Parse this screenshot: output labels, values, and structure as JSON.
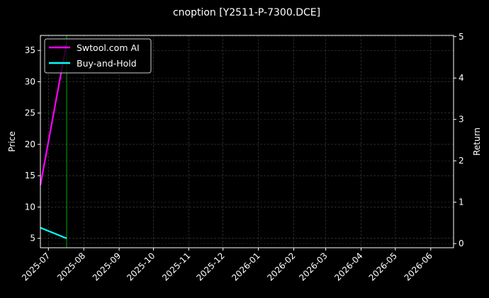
{
  "chart_data": {
    "type": "line",
    "title": "cnoption [Y2511-P-7300.DCE]",
    "ylabel": "Price",
    "y2label": "Return",
    "xlim": [
      "2025-06-24",
      "2026-06-21"
    ],
    "ylim": [
      3.5,
      37.4
    ],
    "y2lim": [
      -0.1,
      5.03
    ],
    "yticks": [
      5,
      10,
      15,
      20,
      25,
      30,
      35
    ],
    "y2ticks": [
      0,
      1,
      2,
      3,
      4,
      5
    ],
    "xticks": [
      "2025-07",
      "2025-08",
      "2025-09",
      "2025-10",
      "2025-11",
      "2025-12",
      "2026-01",
      "2026-02",
      "2026-03",
      "2026-04",
      "2026-05",
      "2026-06"
    ],
    "grid": true,
    "legend_placement": "top-left",
    "series": [
      {
        "name": "Swtool.com AI",
        "color": "#ff00ff",
        "x": [
          "2025-06-24",
          "2025-07-17"
        ],
        "y": [
          13.5,
          36.2
        ]
      },
      {
        "name": "Buy-and-Hold",
        "color": "#00ffff",
        "x": [
          "2025-06-24",
          "2025-07-17"
        ],
        "y": [
          6.7,
          5.0
        ]
      }
    ],
    "vline": {
      "x": "2025-07-17",
      "color": "#00aa00"
    }
  }
}
